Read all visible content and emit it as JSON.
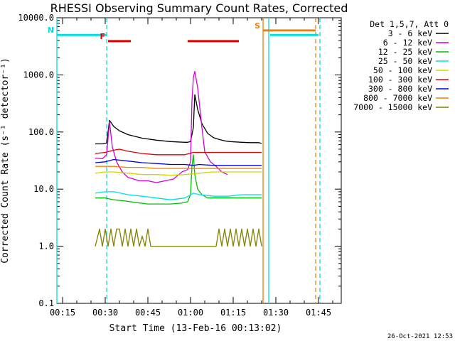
{
  "chart_data": {
    "type": "line",
    "title": "RHESSI Observing Summary Count Rates, Corrected",
    "xlabel": "Start Time (13-Feb-16 00:13:02)",
    "ylabel": "Corrected Count Rate (s⁻¹ detector⁻¹)",
    "x_unit": "minutes after 00:13:02 UT",
    "xlim": [
      0,
      100
    ],
    "ylim": [
      0.1,
      10000
    ],
    "yscale": "log",
    "xticks": [
      {
        "x": 2,
        "label": "00:15"
      },
      {
        "x": 17,
        "label": "00:30"
      },
      {
        "x": 32,
        "label": "00:45"
      },
      {
        "x": 47,
        "label": "01:00"
      },
      {
        "x": 62,
        "label": "01:15"
      },
      {
        "x": 77,
        "label": "01:30"
      },
      {
        "x": 92,
        "label": "01:45"
      }
    ],
    "yticks": [
      {
        "y": 0.1,
        "label": "0.1"
      },
      {
        "y": 1,
        "label": "1.0"
      },
      {
        "y": 10,
        "label": "10.0"
      },
      {
        "y": 100,
        "label": "100.0"
      },
      {
        "y": 1000,
        "label": "1000.0"
      },
      {
        "y": 10000,
        "label": "10000.0"
      }
    ],
    "legend_title": "Det 1,5,7, Att 0",
    "legend_position": "right",
    "series": [
      {
        "name": "3 - 6 keV",
        "color": "#000000",
        "x": [
          13.5,
          16,
          17.5,
          18.5,
          20,
          22,
          25,
          30,
          35,
          40,
          45,
          46,
          47,
          48,
          48.5,
          49.5,
          51,
          53,
          55,
          57,
          59,
          61,
          63,
          65,
          68,
          71,
          72
        ],
        "y": [
          62,
          62,
          64,
          160,
          125,
          105,
          90,
          78,
          72,
          68,
          66,
          66,
          68,
          120,
          450,
          250,
          140,
          95,
          80,
          74,
          70,
          68,
          67,
          66,
          65,
          65,
          63
        ]
      },
      {
        "name": "6 - 12 keV",
        "color": "#d400d4",
        "x": [
          13.5,
          16,
          17.5,
          18.5,
          19.5,
          21,
          23,
          25,
          27,
          29,
          32,
          35,
          38,
          41,
          44,
          46,
          47,
          47.5,
          48,
          48.5,
          49.5,
          51,
          52,
          54,
          56,
          58,
          60
        ],
        "y": [
          35,
          34,
          40,
          150,
          55,
          30,
          20,
          16,
          15,
          14,
          14,
          13,
          14,
          15,
          20,
          22,
          30,
          350,
          900,
          1150,
          600,
          120,
          45,
          30,
          25,
          20,
          18
        ]
      },
      {
        "name": "12 - 25 keV",
        "color": "#00c000",
        "x": [
          13.5,
          17,
          20,
          24,
          28,
          32,
          36,
          40,
          44,
          46,
          47,
          47.5,
          48,
          48.5,
          49.5,
          51,
          53,
          56,
          60,
          64,
          68,
          72
        ],
        "y": [
          7,
          7,
          6.5,
          6.2,
          5.8,
          5.5,
          5.5,
          5.5,
          5.7,
          6,
          8,
          25,
          40,
          18,
          10,
          8,
          7,
          7,
          7,
          7,
          7,
          7
        ]
      },
      {
        "name": "25 - 50 keV",
        "color": "#00e0e0",
        "x": [
          13.5,
          17,
          20,
          25,
          30,
          35,
          40,
          45,
          48,
          50,
          55,
          60,
          65,
          72
        ],
        "y": [
          8.5,
          9,
          9,
          8,
          7.5,
          7,
          6.5,
          7,
          8.5,
          8,
          7.5,
          7.5,
          8,
          8
        ]
      },
      {
        "name": "50 - 100 keV",
        "color": "#d4d400",
        "x": [
          13.5,
          17,
          20,
          25,
          30,
          35,
          40,
          45,
          50,
          55,
          60,
          65,
          72
        ],
        "y": [
          19,
          20,
          20,
          19,
          18,
          18,
          17.5,
          18,
          19,
          20,
          20,
          20,
          20
        ]
      },
      {
        "name": "100 - 300 keV",
        "color": "#e00000",
        "x": [
          13.5,
          17,
          20,
          22,
          25,
          30,
          35,
          40,
          45,
          48,
          50,
          55,
          60,
          65,
          72
        ],
        "y": [
          42,
          44,
          48,
          50,
          46,
          42,
          40,
          40,
          40,
          44,
          44,
          44,
          44,
          44,
          44
        ]
      },
      {
        "name": "300 - 800 keV",
        "color": "#0000e0",
        "x": [
          13.5,
          17,
          20,
          25,
          30,
          35,
          40,
          45,
          48,
          50,
          55,
          60,
          65,
          72
        ],
        "y": [
          29,
          30,
          33,
          31,
          29,
          28,
          27,
          27,
          26,
          27,
          26,
          26,
          26,
          26
        ]
      },
      {
        "name": "800 - 7000 keV",
        "color": "#f08000",
        "x": [
          13.5,
          17,
          20,
          25,
          30,
          35,
          40,
          45,
          48,
          50,
          55,
          60,
          65,
          72
        ],
        "y": [
          25,
          25,
          25,
          24,
          24,
          23,
          23,
          23,
          23,
          23,
          23,
          23,
          23,
          23
        ]
      },
      {
        "name": "7000 - 15000 keV",
        "color": "#808000",
        "x": [
          13.5,
          15,
          16,
          17,
          18,
          19,
          20,
          21,
          22,
          23,
          24,
          25,
          26,
          27,
          28,
          29,
          30,
          31,
          32,
          33,
          34,
          35,
          36,
          38,
          40,
          42,
          44,
          46,
          48,
          50,
          52,
          54,
          56,
          57,
          58,
          59,
          60,
          61,
          62,
          63,
          64,
          65,
          66,
          67,
          68,
          69,
          70,
          71,
          72
        ],
        "y": [
          1,
          2,
          1,
          2,
          1,
          2,
          1,
          2,
          2,
          1,
          2,
          1,
          2,
          1,
          2,
          1,
          1.5,
          1,
          2,
          1,
          1,
          1,
          1,
          1,
          1,
          1,
          1,
          1,
          1,
          1,
          1,
          1,
          1,
          2,
          1,
          2,
          1,
          2,
          1,
          2,
          1,
          2,
          1,
          2,
          1,
          2,
          1,
          2,
          1
        ]
      }
    ],
    "flags": [
      {
        "label": "N",
        "color": "#00e0e0",
        "y": 5000,
        "segments": [
          [
            0,
            17.5
          ],
          [
            75,
            92
          ]
        ]
      },
      {
        "label": "F",
        "color": "#e00000",
        "y": 3900,
        "segments": [
          [
            18,
            26
          ],
          [
            46,
            64
          ]
        ]
      },
      {
        "label": "S",
        "color": "#f08000",
        "y": 6000,
        "segments": [
          [
            72.5,
            91
          ]
        ]
      }
    ],
    "vlines": [
      {
        "x": 0,
        "color": "#00e0e0",
        "dash": false
      },
      {
        "x": 17.5,
        "color": "#00e0e0",
        "dash": true
      },
      {
        "x": 72.5,
        "color": "#f08000",
        "dash": false
      },
      {
        "x": 74.5,
        "color": "#00e0e0",
        "dash": false
      },
      {
        "x": 91,
        "color": "#f08000",
        "dash": true
      },
      {
        "x": 92.5,
        "color": "#00e0e0",
        "dash": true
      }
    ]
  },
  "footer_date": "26-Oct-2021 12:53"
}
